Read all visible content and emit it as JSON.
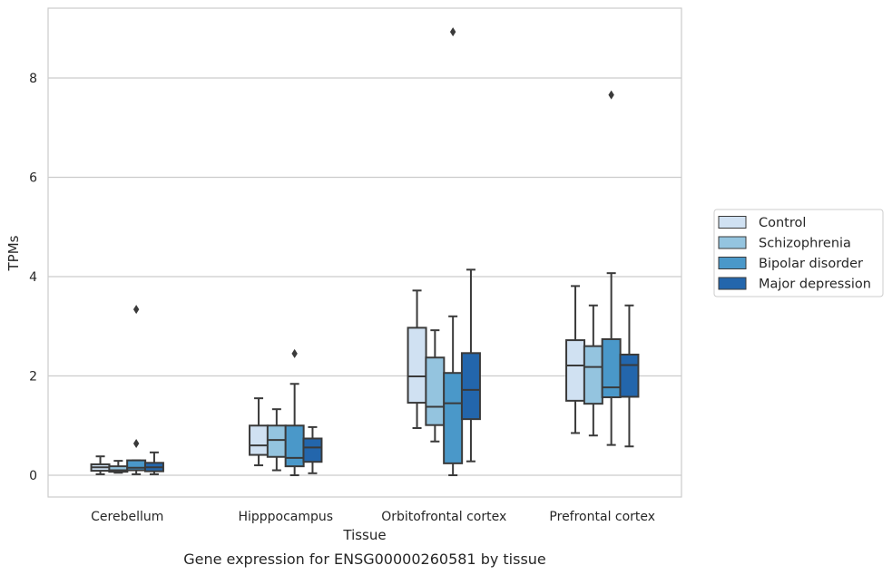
{
  "chart_data": {
    "type": "box",
    "caption": "Gene expression for ENSG00000260581 by tissue",
    "xlabel": "Tissue",
    "ylabel": "TPMs",
    "ylim": [
      -0.45,
      9.45
    ],
    "yticks": [
      0,
      2,
      4,
      6,
      8
    ],
    "grid": "horizontal",
    "legend_position": "right",
    "categories": [
      "Cerebellum",
      "Hipppocampus",
      "Orbitofrontal cortex",
      "Prefrontal cortex"
    ],
    "series": [
      {
        "name": "Control",
        "color": "#d0e1f2",
        "boxes": [
          {
            "min": 0.02,
            "q1": 0.09,
            "median": 0.16,
            "q3": 0.22,
            "max": 0.38,
            "outliers": []
          },
          {
            "min": 0.2,
            "q1": 0.41,
            "median": 0.6,
            "q3": 1.0,
            "max": 1.55,
            "outliers": []
          },
          {
            "min": 0.95,
            "q1": 1.46,
            "median": 1.99,
            "q3": 2.97,
            "max": 3.72,
            "outliers": []
          },
          {
            "min": 0.85,
            "q1": 1.5,
            "median": 2.21,
            "q3": 2.72,
            "max": 3.81,
            "outliers": []
          }
        ]
      },
      {
        "name": "Schizophrenia",
        "color": "#94c4df",
        "boxes": [
          {
            "min": 0.05,
            "q1": 0.07,
            "median": 0.1,
            "q3": 0.18,
            "max": 0.29,
            "outliers": []
          },
          {
            "min": 0.1,
            "q1": 0.37,
            "median": 0.71,
            "q3": 1.0,
            "max": 1.33,
            "outliers": []
          },
          {
            "min": 0.68,
            "q1": 1.01,
            "median": 1.38,
            "q3": 2.37,
            "max": 2.92,
            "outliers": []
          },
          {
            "min": 0.8,
            "q1": 1.44,
            "median": 2.18,
            "q3": 2.6,
            "max": 3.42,
            "outliers": []
          }
        ]
      },
      {
        "name": "Bipolar disorder",
        "color": "#4a98c9",
        "boxes": [
          {
            "min": 0.02,
            "q1": 0.1,
            "median": 0.15,
            "q3": 0.3,
            "max": 0.3,
            "outliers": [
              0.64,
              3.34
            ]
          },
          {
            "min": 0.0,
            "q1": 0.18,
            "median": 0.35,
            "q3": 1.0,
            "max": 1.84,
            "outliers": [
              2.45
            ]
          },
          {
            "min": 0.0,
            "q1": 0.24,
            "median": 1.45,
            "q3": 2.06,
            "max": 3.2,
            "outliers": [
              8.93
            ]
          },
          {
            "min": 0.61,
            "q1": 1.57,
            "median": 1.77,
            "q3": 2.74,
            "max": 4.07,
            "outliers": [
              7.66
            ]
          }
        ]
      },
      {
        "name": "Major depression",
        "color": "#2366ac",
        "boxes": [
          {
            "min": 0.02,
            "q1": 0.08,
            "median": 0.16,
            "q3": 0.25,
            "max": 0.46,
            "outliers": []
          },
          {
            "min": 0.04,
            "q1": 0.27,
            "median": 0.56,
            "q3": 0.74,
            "max": 0.97,
            "outliers": []
          },
          {
            "min": 0.28,
            "q1": 1.13,
            "median": 1.72,
            "q3": 2.46,
            "max": 4.14,
            "outliers": []
          },
          {
            "min": 0.58,
            "q1": 1.58,
            "median": 2.22,
            "q3": 2.43,
            "max": 3.42,
            "outliers": []
          }
        ]
      }
    ]
  }
}
